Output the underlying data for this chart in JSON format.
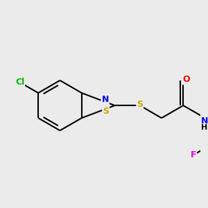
{
  "background_color": "#ebebeb",
  "bond_color": "#000000",
  "bond_width": 1.5,
  "atom_colors": {
    "Cl": "#00bb00",
    "S": "#ccaa00",
    "N": "#0000ff",
    "O": "#ff0000",
    "F": "#ee00ee",
    "C": "#000000",
    "H": "#000000"
  },
  "figsize": [
    3.0,
    3.0
  ],
  "dpi": 100,
  "bg": "#e8e8e8"
}
